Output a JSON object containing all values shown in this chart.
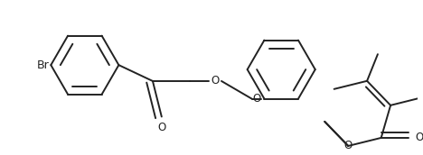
{
  "bg_color": "#ffffff",
  "line_color": "#222222",
  "lw": 1.4,
  "font_size": 8.5,
  "figsize": [
    4.68,
    1.72
  ],
  "dpi": 100,
  "xlim": [
    0,
    468
  ],
  "ylim": [
    0,
    172
  ]
}
